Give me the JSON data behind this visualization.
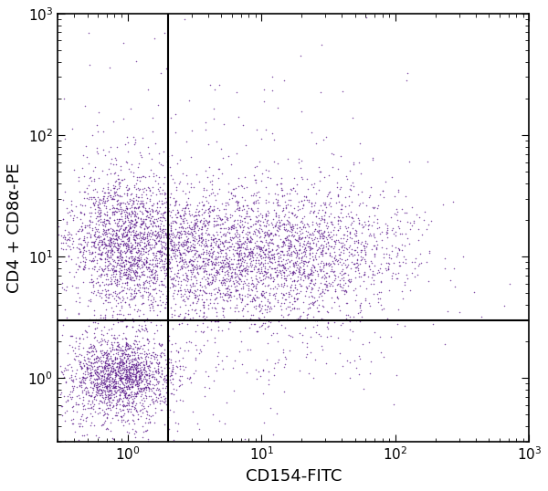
{
  "dot_color": "#5B1A8B",
  "dot_alpha": 0.75,
  "dot_size": 1.2,
  "xlabel": "CD154-FITC",
  "ylabel": "CD4 + CD8α-PE",
  "xline": 2.0,
  "yline": 3.0,
  "xlim": [
    0.3,
    1000
  ],
  "ylim": [
    0.3,
    1000
  ],
  "background_color": "#ffffff",
  "figure_size": [
    6.0,
    5.38
  ],
  "dpi": 100,
  "clusters": [
    {
      "name": "lower_left_core",
      "center_x_log": -0.05,
      "center_y_log": 0.02,
      "std_x": 0.18,
      "std_y": 0.15,
      "n_points": 1200
    },
    {
      "name": "lower_left_spread",
      "center_x_log": -0.1,
      "center_y_log": -0.05,
      "std_x": 0.28,
      "std_y": 0.25,
      "n_points": 600
    },
    {
      "name": "upper_left_core",
      "center_x_log": -0.05,
      "center_y_log": 1.15,
      "std_x": 0.2,
      "std_y": 0.3,
      "n_points": 1400
    },
    {
      "name": "upper_right_core",
      "center_x_log": 0.85,
      "center_y_log": 1.0,
      "std_x": 0.45,
      "std_y": 0.28,
      "n_points": 2200
    },
    {
      "name": "upper_right_high",
      "center_x_log": 1.5,
      "center_y_log": 1.05,
      "std_x": 0.4,
      "std_y": 0.3,
      "n_points": 800
    },
    {
      "name": "transition_zone",
      "center_x_log": 0.35,
      "center_y_log": 1.08,
      "std_x": 0.3,
      "std_y": 0.28,
      "n_points": 600
    },
    {
      "name": "sparse_high_y",
      "center_x_log": 0.6,
      "center_y_log": 2.0,
      "std_x": 0.6,
      "std_y": 0.5,
      "n_points": 120
    },
    {
      "name": "lower_right_sparse",
      "center_x_log": 1.0,
      "center_y_log": 0.3,
      "std_x": 0.5,
      "std_y": 0.3,
      "n_points": 150
    }
  ],
  "xtick_positions": [
    1,
    10,
    100,
    1000
  ],
  "ytick_positions": [
    1,
    10,
    100,
    1000
  ]
}
